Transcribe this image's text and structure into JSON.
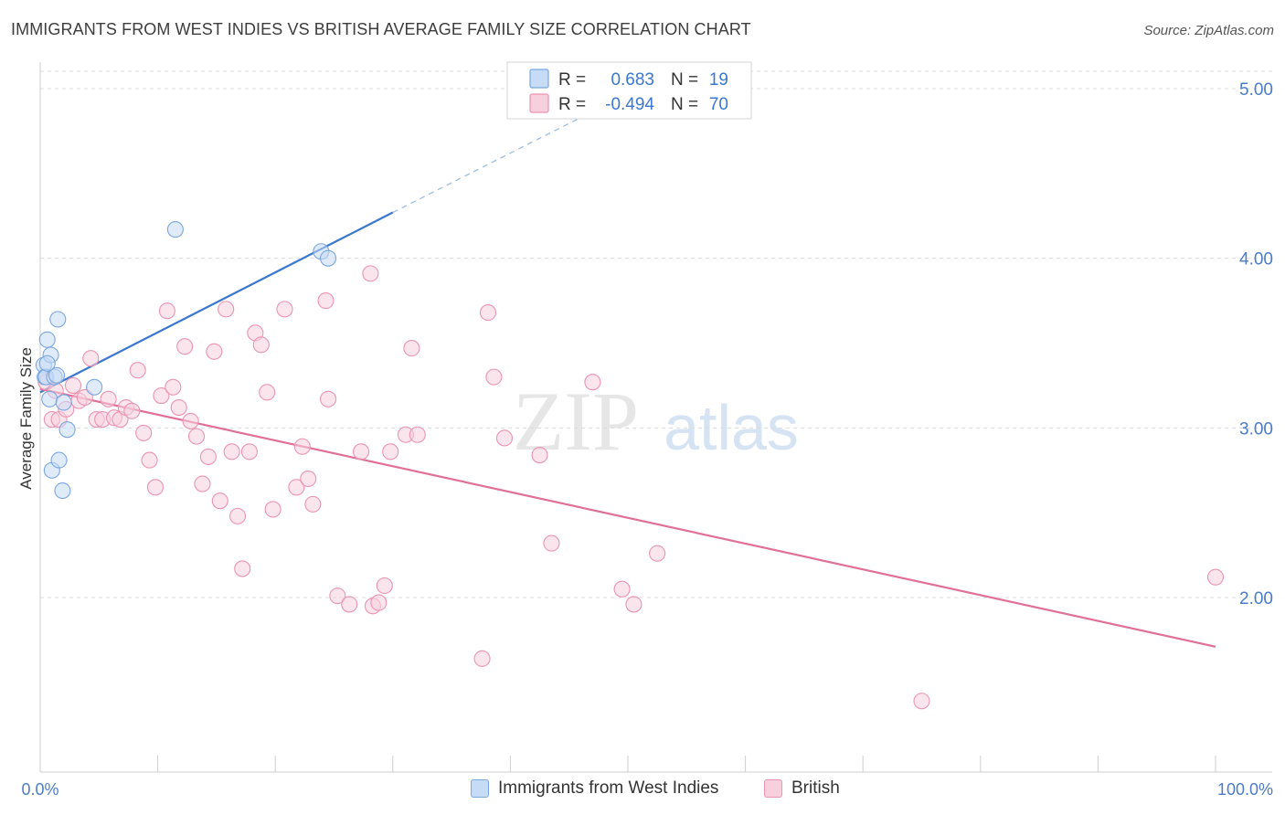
{
  "header": {
    "title": "IMMIGRANTS FROM WEST INDIES VS BRITISH AVERAGE FAMILY SIZE CORRELATION CHART",
    "source": "Source: ZipAtlas.com"
  },
  "watermark": {
    "zip": "ZIP",
    "atlas": "atlas"
  },
  "colors": {
    "blue": "#7aa7e0",
    "blue_fill": "#c6dbf5",
    "blue_line": "#3a78d0",
    "pink": "#eb94b0",
    "pink_fill": "#f8cfdc",
    "pink_line": "#e07098",
    "tick_label": "#4a7cc9"
  },
  "stats_box": {
    "rows": [
      {
        "r_label": "R =",
        "r_value": "0.683",
        "n_label": "N =",
        "n_value": "19"
      },
      {
        "r_label": "R =",
        "r_value": "-0.494",
        "n_label": "N =",
        "n_value": "70"
      }
    ]
  },
  "legend": {
    "items": [
      {
        "label": "Immigrants from West Indies"
      },
      {
        "label": "British"
      }
    ]
  },
  "chart_data": {
    "type": "scatter",
    "title": "IMMIGRANTS FROM WEST INDIES VS BRITISH AVERAGE FAMILY SIZE CORRELATION CHART",
    "xlabel": "",
    "ylabel": "Average Family Size",
    "xlim": [
      0,
      100
    ],
    "ylim": [
      1.0,
      5.1
    ],
    "x_tick_labels": [
      "0.0%",
      "100.0%"
    ],
    "y_ticks": [
      2.0,
      3.0,
      4.0,
      5.0
    ],
    "y_tick_labels": [
      "2.00",
      "3.00",
      "4.00",
      "5.00"
    ],
    "grid": true,
    "legend_position": "bottom-center",
    "series": [
      {
        "name": "Immigrants from West Indies",
        "color": "#7aa7e0",
        "r": 0.683,
        "n": 19,
        "trend": {
          "x0": 0,
          "y0": 3.21,
          "x1": 30,
          "y1": 4.27,
          "dash_to_x": 46,
          "dash_to_y": 4.83
        },
        "points": [
          [
            0.3,
            3.37
          ],
          [
            0.4,
            3.3
          ],
          [
            0.5,
            3.3
          ],
          [
            0.6,
            3.52
          ],
          [
            0.8,
            3.17
          ],
          [
            0.9,
            3.43
          ],
          [
            1.0,
            2.75
          ],
          [
            1.2,
            3.3
          ],
          [
            1.4,
            3.31
          ],
          [
            1.5,
            3.64
          ],
          [
            1.6,
            2.81
          ],
          [
            1.9,
            2.63
          ],
          [
            2.0,
            3.15
          ],
          [
            2.3,
            2.99
          ],
          [
            4.6,
            3.24
          ],
          [
            11.5,
            4.17
          ],
          [
            23.9,
            4.04
          ],
          [
            24.5,
            4.0
          ],
          [
            0.6,
            3.38
          ]
        ]
      },
      {
        "name": "British",
        "color": "#eb94b0",
        "r": -0.494,
        "n": 70,
        "trend": {
          "x0": 0,
          "y0": 3.23,
          "x1": 100,
          "y1": 1.71
        },
        "points": [
          [
            0.5,
            3.27
          ],
          [
            1.0,
            3.05
          ],
          [
            1.3,
            3.22
          ],
          [
            1.6,
            3.05
          ],
          [
            2.2,
            3.11
          ],
          [
            2.8,
            3.25
          ],
          [
            3.3,
            3.16
          ],
          [
            3.8,
            3.18
          ],
          [
            4.3,
            3.41
          ],
          [
            4.8,
            3.05
          ],
          [
            5.3,
            3.05
          ],
          [
            5.8,
            3.17
          ],
          [
            6.3,
            3.06
          ],
          [
            6.8,
            3.05
          ],
          [
            7.3,
            3.12
          ],
          [
            7.8,
            3.1
          ],
          [
            8.3,
            3.34
          ],
          [
            8.8,
            2.97
          ],
          [
            9.3,
            2.81
          ],
          [
            9.8,
            2.65
          ],
          [
            10.3,
            3.19
          ],
          [
            10.8,
            3.69
          ],
          [
            11.3,
            3.24
          ],
          [
            11.8,
            3.12
          ],
          [
            12.3,
            3.48
          ],
          [
            12.8,
            3.04
          ],
          [
            13.3,
            2.95
          ],
          [
            13.8,
            2.67
          ],
          [
            14.3,
            2.83
          ],
          [
            14.8,
            3.45
          ],
          [
            15.3,
            2.57
          ],
          [
            15.8,
            3.7
          ],
          [
            16.3,
            2.86
          ],
          [
            16.8,
            2.48
          ],
          [
            17.2,
            2.17
          ],
          [
            17.8,
            2.86
          ],
          [
            18.3,
            3.56
          ],
          [
            18.8,
            3.49
          ],
          [
            19.3,
            3.21
          ],
          [
            19.8,
            2.52
          ],
          [
            20.8,
            3.7
          ],
          [
            21.8,
            2.65
          ],
          [
            22.3,
            2.89
          ],
          [
            22.8,
            2.7
          ],
          [
            23.2,
            2.55
          ],
          [
            24.3,
            3.75
          ],
          [
            24.5,
            3.17
          ],
          [
            25.3,
            2.01
          ],
          [
            26.3,
            1.96
          ],
          [
            27.3,
            2.86
          ],
          [
            28.1,
            3.91
          ],
          [
            28.3,
            1.95
          ],
          [
            28.8,
            1.97
          ],
          [
            29.3,
            2.07
          ],
          [
            29.8,
            2.86
          ],
          [
            31.1,
            2.96
          ],
          [
            31.6,
            3.47
          ],
          [
            32.1,
            2.96
          ],
          [
            37.6,
            1.64
          ],
          [
            38.1,
            3.68
          ],
          [
            38.6,
            3.3
          ],
          [
            39.5,
            2.94
          ],
          [
            42.5,
            2.84
          ],
          [
            43.5,
            2.32
          ],
          [
            47.0,
            3.27
          ],
          [
            49.5,
            2.05
          ],
          [
            50.5,
            1.96
          ],
          [
            52.5,
            2.26
          ],
          [
            75.0,
            1.39
          ],
          [
            100.0,
            2.12
          ]
        ]
      }
    ]
  }
}
